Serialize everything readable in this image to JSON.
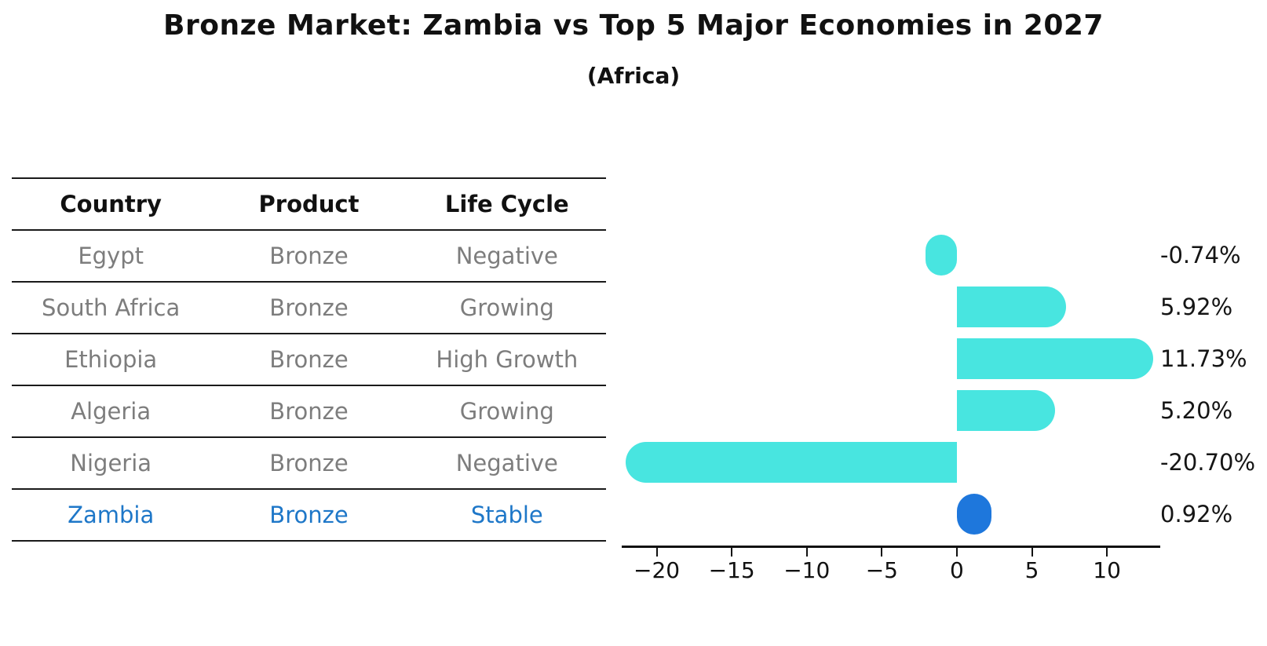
{
  "title": "Bronze Market: Zambia vs Top 5 Major Economies in 2027",
  "subtitle": "(Africa)",
  "table": {
    "headers": [
      "Country",
      "Product",
      "Life Cycle"
    ],
    "rows": [
      {
        "country": "Egypt",
        "product": "Bronze",
        "life_cycle": "Negative",
        "highlight": false
      },
      {
        "country": "South Africa",
        "product": "Bronze",
        "life_cycle": "Growing",
        "highlight": false
      },
      {
        "country": "Ethiopia",
        "product": "Bronze",
        "life_cycle": "High Growth",
        "highlight": false
      },
      {
        "country": "Algeria",
        "product": "Bronze",
        "life_cycle": "Growing",
        "highlight": false
      },
      {
        "country": "Nigeria",
        "product": "Bronze",
        "life_cycle": "Negative",
        "highlight": false
      },
      {
        "country": "Zambia",
        "product": "Bronze",
        "life_cycle": "Stable",
        "highlight": true
      }
    ]
  },
  "chart_data": {
    "type": "bar",
    "orientation": "horizontal",
    "categories": [
      "Egypt",
      "South Africa",
      "Ethiopia",
      "Algeria",
      "Nigeria",
      "Zambia"
    ],
    "values": [
      -0.74,
      5.92,
      11.73,
      5.2,
      -20.7,
      0.92
    ],
    "value_labels": [
      "-0.74%",
      "5.92%",
      "11.73%",
      "5.20%",
      "-20.70%",
      "0.92%"
    ],
    "highlight_index": 5,
    "x_ticks": [
      -20,
      -15,
      -10,
      -5,
      0,
      5,
      10
    ],
    "xlim": [
      -22.33,
      13.55
    ],
    "grid": false,
    "legend": "none",
    "xlabel": "",
    "ylabel": "",
    "bar_color": "#48e5e0",
    "highlight_color": "#1e77dc"
  },
  "colors": {
    "highlight_text": "#1e77c8",
    "cell_text": "#7d7d7d",
    "axis": "#111111"
  }
}
